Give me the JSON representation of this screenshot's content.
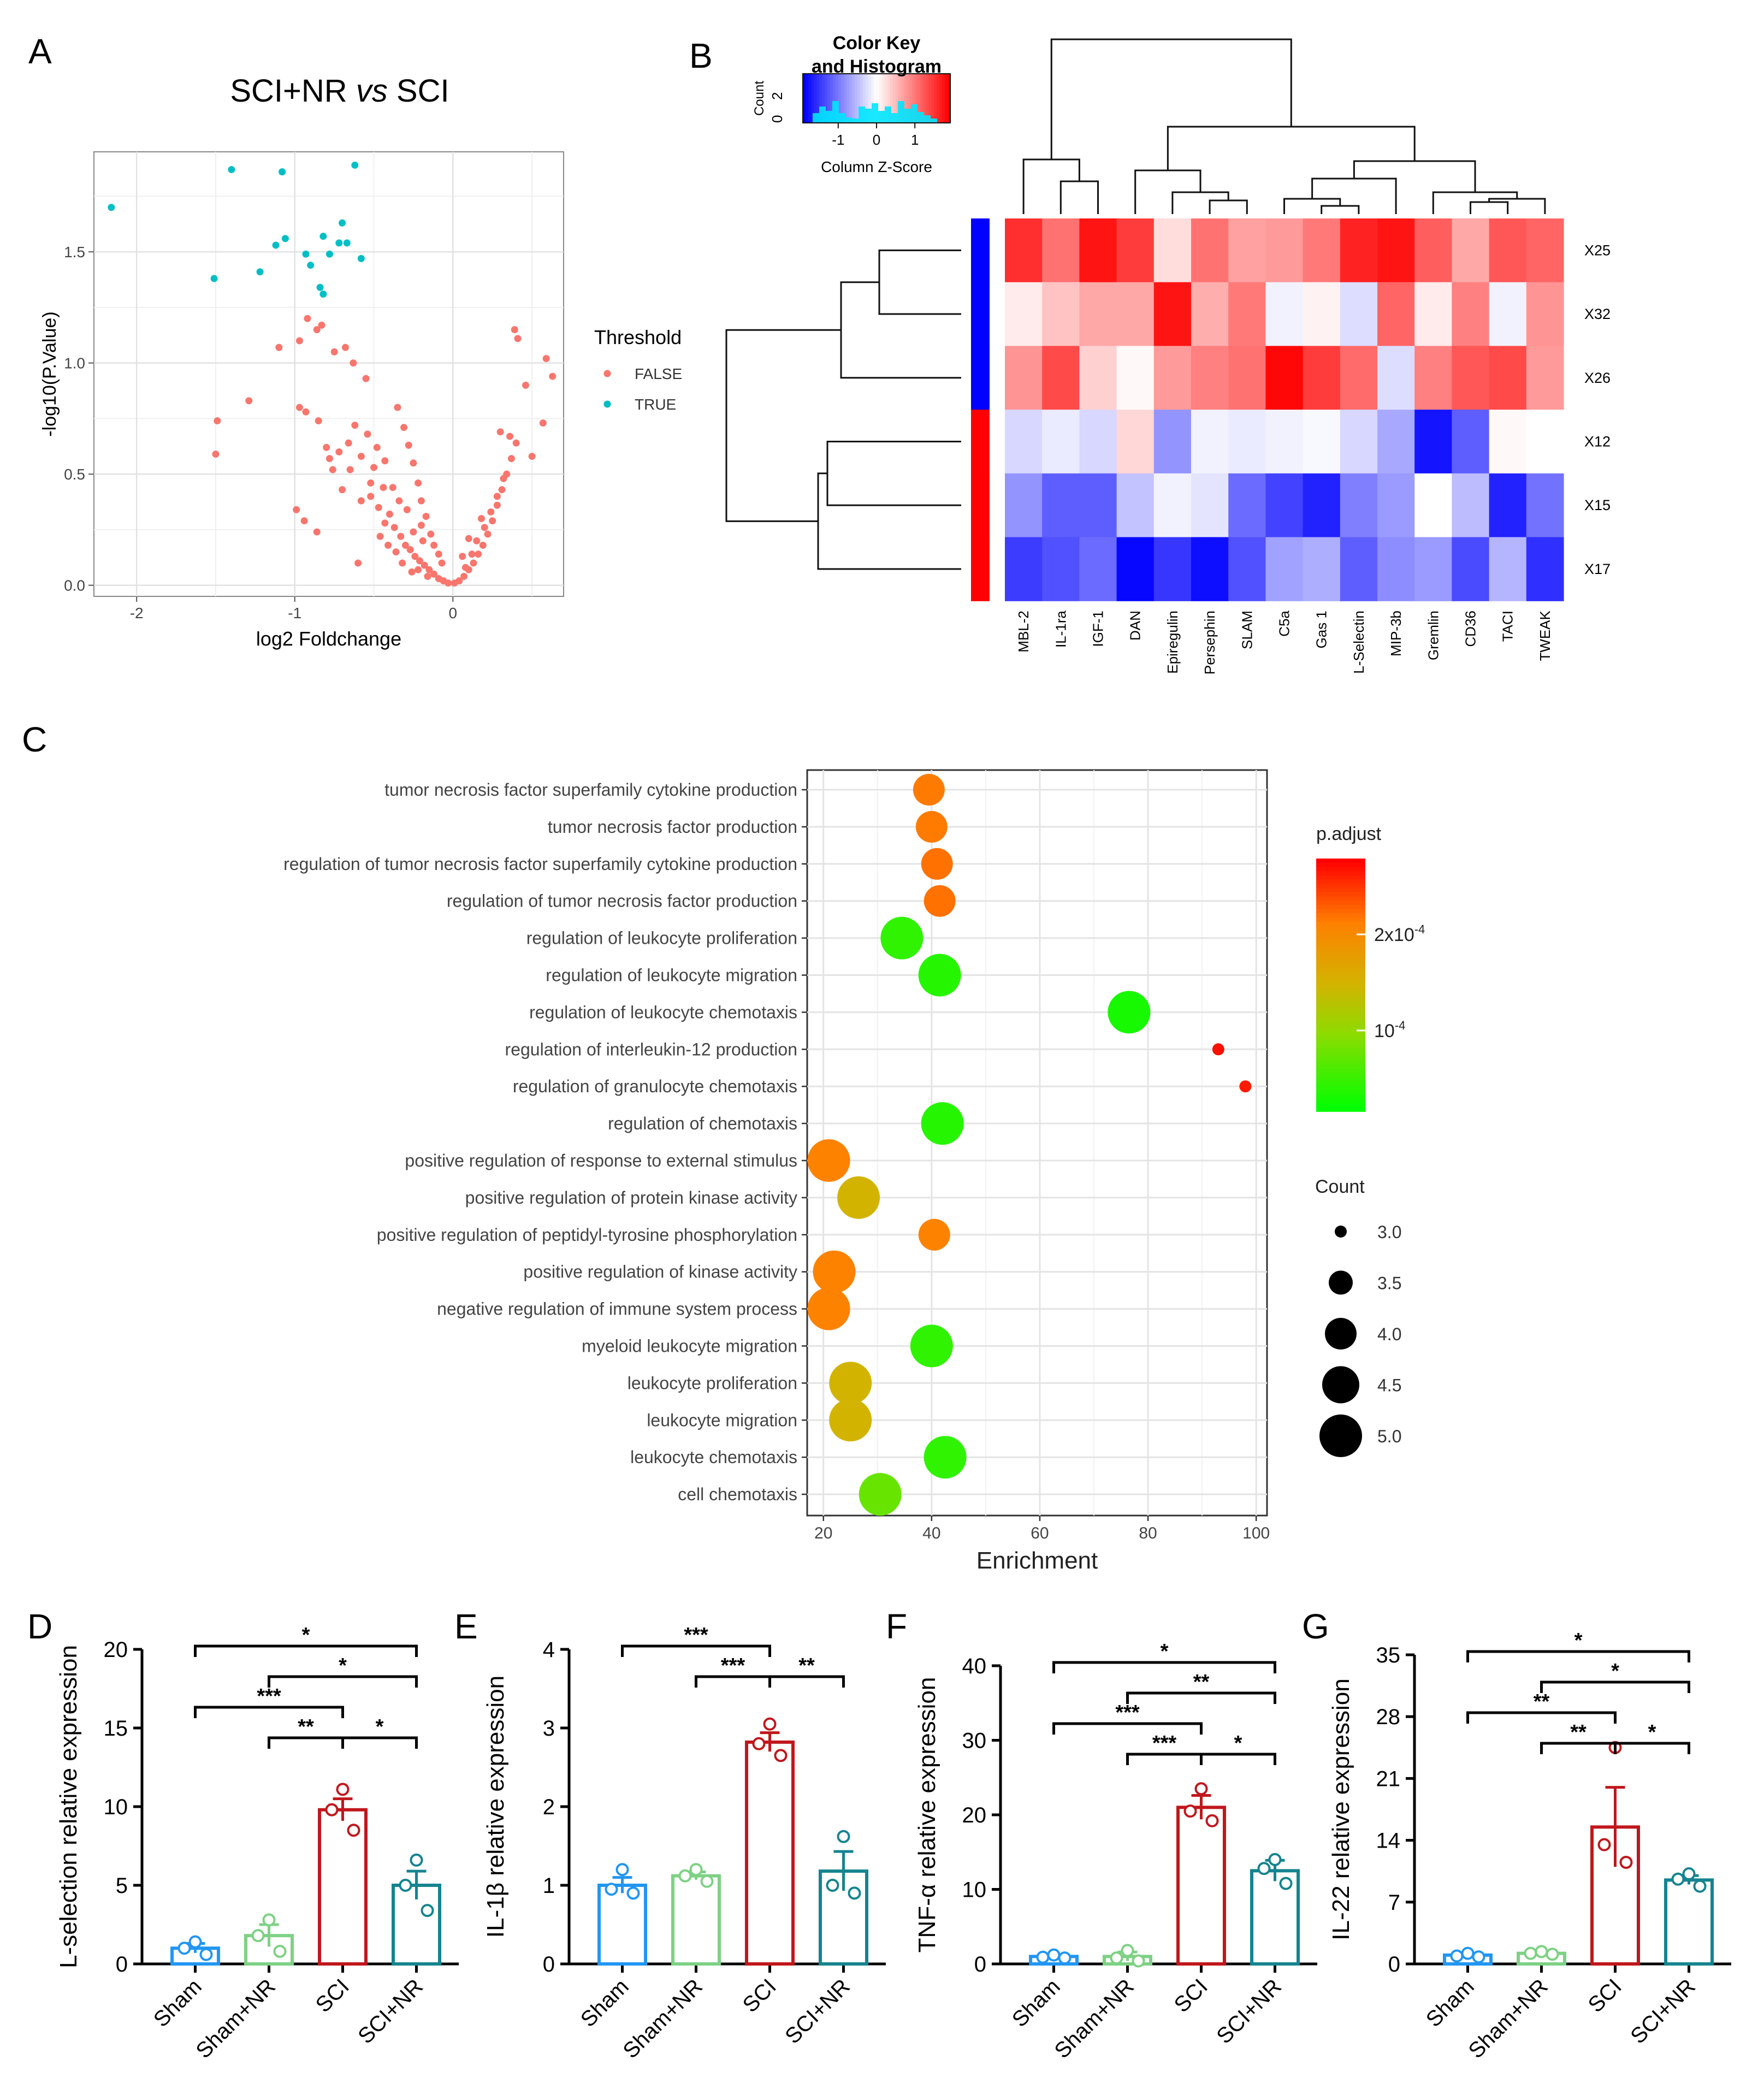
{
  "panel_labels": {
    "A": "A",
    "B": "B",
    "C": "C",
    "D": "D",
    "E": "E",
    "F": "F",
    "G": "G"
  },
  "colors": {
    "red": "#f8766d",
    "cyan": "#00bfc4",
    "sham": "#2196f3",
    "shamnr": "#7ed184",
    "sci": "#c0171c",
    "scinr": "#15848f"
  },
  "chart_data": [
    {
      "panel": "A",
      "type": "scatter",
      "title_a": "SCI+NR ",
      "title_b": "vs",
      "title_c": " SCI",
      "xlabel": "log2 Foldchange",
      "ylabel": "-log10(P.Value)",
      "xlim": [
        -2.27,
        0.7
      ],
      "ylim": [
        -0.05,
        1.95
      ],
      "xticks": [
        -2,
        -1,
        0
      ],
      "xtick_labels": [
        "-2",
        "-1",
        "0"
      ],
      "yticks": [
        0.0,
        0.5,
        1.0,
        1.5
      ],
      "ytick_labels": [
        "0.0",
        "0.5",
        "1.0",
        "1.5"
      ],
      "legend_title": "Threshold",
      "legend": [
        "FALSE",
        "TRUE"
      ],
      "true_points": [
        [
          -2.16,
          1.7
        ],
        [
          -1.4,
          1.87
        ],
        [
          -1.08,
          1.86
        ],
        [
          -0.62,
          1.89
        ],
        [
          -1.51,
          1.38
        ],
        [
          -1.22,
          1.41
        ],
        [
          -1.12,
          1.53
        ],
        [
          -1.06,
          1.56
        ],
        [
          -0.93,
          1.49
        ],
        [
          -0.9,
          1.44
        ],
        [
          -0.82,
          1.57
        ],
        [
          -0.78,
          1.49
        ],
        [
          -0.72,
          1.54
        ],
        [
          -0.7,
          1.63
        ],
        [
          -0.67,
          1.54
        ],
        [
          -0.58,
          1.47
        ],
        [
          -0.84,
          1.34
        ],
        [
          -0.82,
          1.31
        ]
      ],
      "false_points": [
        [
          -1.49,
          0.74
        ],
        [
          -1.5,
          0.59
        ],
        [
          -1.29,
          0.83
        ],
        [
          -1.1,
          1.07
        ],
        [
          -0.97,
          1.1
        ],
        [
          -0.92,
          1.2
        ],
        [
          -0.86,
          1.15
        ],
        [
          -0.83,
          1.17
        ],
        [
          -0.93,
          0.78
        ],
        [
          -0.97,
          0.8
        ],
        [
          -0.99,
          0.34
        ],
        [
          -0.94,
          0.29
        ],
        [
          -0.86,
          0.24
        ],
        [
          -0.75,
          1.05
        ],
        [
          -0.68,
          1.07
        ],
        [
          -0.63,
          1.0
        ],
        [
          -0.55,
          0.93
        ],
        [
          -0.62,
          0.72
        ],
        [
          -0.54,
          0.68
        ],
        [
          -0.48,
          0.62
        ],
        [
          -0.43,
          0.56
        ],
        [
          -0.85,
          0.74
        ],
        [
          -0.8,
          0.62
        ],
        [
          -0.76,
          0.52
        ],
        [
          -0.7,
          0.43
        ],
        [
          -0.65,
          0.52
        ],
        [
          -0.58,
          0.38
        ],
        [
          -0.52,
          0.46
        ],
        [
          -0.47,
          0.35
        ],
        [
          -0.43,
          0.28
        ],
        [
          -0.4,
          0.32
        ],
        [
          -0.37,
          0.26
        ],
        [
          -0.33,
          0.22
        ],
        [
          -0.3,
          0.18
        ],
        [
          -0.27,
          0.16
        ],
        [
          -0.24,
          0.13
        ],
        [
          -0.21,
          0.11
        ],
        [
          -0.18,
          0.09
        ],
        [
          -0.15,
          0.07
        ],
        [
          -0.12,
          0.05
        ],
        [
          -0.09,
          0.03
        ],
        [
          -0.06,
          0.02
        ],
        [
          -0.03,
          0.01
        ],
        [
          -0.35,
          0.8
        ],
        [
          -0.31,
          0.71
        ],
        [
          -0.28,
          0.63
        ],
        [
          -0.25,
          0.55
        ],
        [
          -0.22,
          0.46
        ],
        [
          -0.2,
          0.38
        ],
        [
          -0.17,
          0.31
        ],
        [
          -0.14,
          0.23
        ],
        [
          -0.12,
          0.18
        ],
        [
          -0.09,
          0.14
        ],
        [
          -0.07,
          0.1
        ],
        [
          -0.25,
          0.24
        ],
        [
          -0.2,
          0.27
        ],
        [
          -0.19,
          0.2
        ],
        [
          -0.38,
          0.44
        ],
        [
          -0.34,
          0.38
        ],
        [
          -0.29,
          0.34
        ],
        [
          -0.44,
          0.44
        ],
        [
          -0.5,
          0.53
        ],
        [
          -0.58,
          0.58
        ],
        [
          -0.66,
          0.64
        ],
        [
          -0.72,
          0.6
        ],
        [
          -0.78,
          0.57
        ],
        [
          -0.6,
          0.1
        ],
        [
          -0.52,
          0.4
        ],
        [
          -0.46,
          0.22
        ],
        [
          -0.41,
          0.18
        ],
        [
          -0.36,
          0.15
        ],
        [
          -0.32,
          0.1
        ],
        [
          -0.26,
          0.06
        ],
        [
          -0.22,
          0.07
        ],
        [
          -0.16,
          0.04
        ],
        [
          0.01,
          0.01
        ],
        [
          0.04,
          0.02
        ],
        [
          0.07,
          0.04
        ],
        [
          0.1,
          0.07
        ],
        [
          0.13,
          0.1
        ],
        [
          0.16,
          0.14
        ],
        [
          0.19,
          0.18
        ],
        [
          0.22,
          0.23
        ],
        [
          0.25,
          0.29
        ],
        [
          0.28,
          0.36
        ],
        [
          0.31,
          0.43
        ],
        [
          0.34,
          0.5
        ],
        [
          0.37,
          0.57
        ],
        [
          0.4,
          0.64
        ],
        [
          0.08,
          0.08
        ],
        [
          0.12,
          0.14
        ],
        [
          0.15,
          0.2
        ],
        [
          0.2,
          0.26
        ],
        [
          0.24,
          0.33
        ],
        [
          0.28,
          0.4
        ],
        [
          0.32,
          0.48
        ],
        [
          0.36,
          0.67
        ],
        [
          0.39,
          1.15
        ],
        [
          0.41,
          1.11
        ],
        [
          0.46,
          0.9
        ],
        [
          0.5,
          0.58
        ],
        [
          0.57,
          0.73
        ],
        [
          0.59,
          1.02
        ],
        [
          0.63,
          0.94
        ],
        [
          0.3,
          0.69
        ],
        [
          0.1,
          0.21
        ],
        [
          0.18,
          0.3
        ],
        [
          0.06,
          0.13
        ]
      ]
    },
    {
      "panel": "B",
      "type": "heatmap",
      "key_title_1": "Color Key",
      "key_title_2": "and Histogram",
      "key_ylabel": "Count",
      "key_xlabel": "Column Z-Score",
      "key_ticks": [
        "-1",
        "0",
        "1"
      ],
      "key_yticks": [
        "0",
        "2"
      ],
      "rows": [
        "X25",
        "X32",
        "X26",
        "X12",
        "X15",
        "X17"
      ],
      "columns": [
        "MBL-2",
        "IL-1ra",
        "IGF-1",
        "DAN",
        "Epiregulin",
        "Persephin",
        "SLAM",
        "C5a",
        "Gas 1",
        "L-Selectin",
        "MIP-3b",
        "Gremlin",
        "CD36",
        "TACI",
        "TWEAK"
      ],
      "values": [
        [
          1.55,
          1.05,
          1.75,
          1.45,
          0.25,
          1.05,
          0.7,
          0.75,
          1.0,
          1.65,
          1.75,
          1.2,
          0.65,
          1.25,
          1.15
        ],
        [
          0.15,
          0.45,
          0.65,
          0.65,
          1.75,
          0.6,
          1.0,
          -0.1,
          0.1,
          -0.25,
          1.15,
          0.15,
          0.95,
          -0.1,
          0.8
        ],
        [
          0.8,
          1.35,
          0.35,
          0.05,
          0.75,
          0.95,
          1.05,
          1.85,
          1.45,
          1.1,
          -0.25,
          0.95,
          1.25,
          1.35,
          0.75
        ],
        [
          -0.3,
          -0.15,
          -0.3,
          0.3,
          -0.8,
          -0.1,
          -0.15,
          -0.1,
          -0.05,
          -0.3,
          -0.65,
          -1.75,
          -1.2,
          0.05,
          0.0
        ],
        [
          -0.8,
          -1.2,
          -1.2,
          -0.45,
          -0.1,
          -0.2,
          -1.1,
          -1.4,
          -1.65,
          -0.95,
          -0.75,
          0.0,
          -0.5,
          -1.65,
          -1.05
        ],
        [
          -1.45,
          -1.3,
          -1.1,
          -1.85,
          -1.5,
          -1.8,
          -1.3,
          -0.7,
          -0.6,
          -1.2,
          -0.85,
          -0.75,
          -1.35,
          -0.55,
          -1.55
        ]
      ],
      "row_groups": [
        "blue",
        "blue",
        "blue",
        "red",
        "red",
        "red"
      ]
    },
    {
      "panel": "C",
      "type": "scatter",
      "terms": [
        "tumor necrosis factor superfamily cytokine production",
        "tumor necrosis factor production",
        "regulation of tumor necrosis factor superfamily cytokine production",
        "regulation of tumor necrosis factor production",
        "regulation of leukocyte proliferation",
        "regulation of leukocyte migration",
        "regulation of leukocyte chemotaxis",
        "regulation of interleukin-12 production",
        "regulation of granulocyte chemotaxis",
        "regulation of chemotaxis",
        "positive regulation of response to external stimulus",
        "positive regulation of protein kinase activity",
        "positive regulation of peptidyl-tyrosine phosphorylation",
        "positive regulation of kinase activity",
        "negative regulation of immune system process",
        "myeloid leukocyte migration",
        "leukocyte proliferation",
        "leukocyte migration",
        "leukocyte chemotaxis",
        "cell chemotaxis"
      ],
      "enrichment": [
        39.5,
        40.0,
        41.0,
        41.5,
        34.5,
        41.5,
        76.5,
        93.0,
        98.0,
        42.0,
        21.0,
        26.5,
        40.5,
        22.0,
        21.0,
        40.0,
        25.0,
        25.0,
        42.5,
        30.5
      ],
      "count": [
        4,
        4,
        4,
        4,
        5,
        5,
        5,
        3,
        3,
        5,
        5,
        5,
        4,
        5,
        5,
        5,
        5,
        5,
        5,
        5
      ],
      "p_adjust_level": [
        0.76,
        0.76,
        0.78,
        0.78,
        0.1,
        0.08,
        0.05,
        0.97,
        0.95,
        0.08,
        0.74,
        0.5,
        0.74,
        0.74,
        0.74,
        0.1,
        0.5,
        0.5,
        0.1,
        0.22
      ],
      "xlabel": "Enrichment",
      "xlim": [
        17,
        102
      ],
      "xticks": [
        20,
        40,
        60,
        80,
        100
      ],
      "xtick_labels": [
        "20",
        "40",
        "60",
        "80",
        "100"
      ],
      "colorbar_title": "p.adjust",
      "colorbar_ticks": [
        {
          "label": "2x10",
          "sup": "-4",
          "level": 0.7
        },
        {
          "label": "10",
          "sup": "-4",
          "level": 0.32
        }
      ],
      "size_title": "Count",
      "size_legend": [
        "3.0",
        "3.5",
        "4.0",
        "4.5",
        "5.0"
      ]
    },
    {
      "panel": "D",
      "type": "bar",
      "ylabel": "L-selection relative expression",
      "categories": [
        "Sham",
        "Sham+NR",
        "SCI",
        "SCI+NR"
      ],
      "values": [
        1.0,
        1.8,
        9.8,
        5.0
      ],
      "sem": [
        0.3,
        0.7,
        0.7,
        0.9
      ],
      "points": [
        [
          1.4,
          1.0,
          0.6
        ],
        [
          2.8,
          1.8,
          0.8
        ],
        [
          11.1,
          9.8,
          8.5
        ],
        [
          6.6,
          5.0,
          3.4
        ]
      ],
      "ylim": [
        0,
        20
      ],
      "yticks": [
        0,
        5,
        10,
        15,
        20
      ],
      "ytick_labels": [
        "0",
        "5",
        "10",
        "15",
        "20"
      ],
      "sig": [
        {
          "a": 0,
          "b": 3,
          "label": "*",
          "level": 0
        },
        {
          "a": 1,
          "b": 3,
          "label": "*",
          "level": 1
        },
        {
          "a": 0,
          "b": 2,
          "label": "***",
          "level": 2
        },
        {
          "a": 1,
          "b": 2,
          "label": "**",
          "level": 3
        },
        {
          "a": 2,
          "b": 3,
          "label": "*",
          "level": 3
        }
      ]
    },
    {
      "panel": "E",
      "type": "bar",
      "ylabel": "IL-1β relative expression",
      "categories": [
        "Sham",
        "Sham+NR",
        "SCI",
        "SCI+NR"
      ],
      "values": [
        1.0,
        1.12,
        2.82,
        1.18
      ],
      "sem": [
        0.1,
        0.05,
        0.12,
        0.25
      ],
      "points": [
        [
          1.2,
          0.95,
          0.9
        ],
        [
          1.2,
          1.12,
          1.05
        ],
        [
          3.05,
          2.8,
          2.65
        ],
        [
          1.62,
          1.0,
          0.9
        ]
      ],
      "ylim": [
        0,
        4
      ],
      "yticks": [
        0,
        1,
        2,
        3,
        4
      ],
      "ytick_labels": [
        "0",
        "1",
        "2",
        "3",
        "4"
      ],
      "sig": [
        {
          "a": 0,
          "b": 2,
          "label": "***",
          "level": 0
        },
        {
          "a": 1,
          "b": 2,
          "label": "***",
          "level": 1
        },
        {
          "a": 2,
          "b": 3,
          "label": "**",
          "level": 1
        }
      ]
    },
    {
      "panel": "F",
      "type": "bar",
      "ylabel": "TNF-α relative expression",
      "categories": [
        "Sham",
        "Sham+NR",
        "SCI",
        "SCI+NR"
      ],
      "values": [
        1.0,
        1.0,
        21.0,
        12.5
      ],
      "sem": [
        0.1,
        0.6,
        1.6,
        1.4
      ],
      "points": [
        [
          1.2,
          0.9,
          0.8
        ],
        [
          1.8,
          0.8,
          0.4
        ],
        [
          23.5,
          20.5,
          19.2
        ],
        [
          14.0,
          12.8,
          10.8
        ]
      ],
      "ylim": [
        0,
        40
      ],
      "yticks": [
        0,
        10,
        20,
        30,
        40
      ],
      "ytick_labels": [
        "0",
        "10",
        "20",
        "30",
        "40"
      ],
      "sig": [
        {
          "a": 0,
          "b": 3,
          "label": "*",
          "level": 0
        },
        {
          "a": 1,
          "b": 3,
          "label": "**",
          "level": 1
        },
        {
          "a": 0,
          "b": 2,
          "label": "***",
          "level": 2
        },
        {
          "a": 1,
          "b": 2,
          "label": "***",
          "level": 3
        },
        {
          "a": 2,
          "b": 3,
          "label": "*",
          "level": 3
        }
      ]
    },
    {
      "panel": "G",
      "type": "bar",
      "ylabel": "IL-22 relative expression",
      "categories": [
        "Sham",
        "Sham+NR",
        "SCI",
        "SCI+NR"
      ],
      "values": [
        1.0,
        1.2,
        15.5,
        9.5
      ],
      "sem": [
        0.2,
        0.1,
        4.5,
        0.5
      ],
      "points": [
        [
          1.2,
          0.9,
          0.8
        ],
        [
          1.4,
          1.2,
          1.1
        ],
        [
          24.5,
          13.5,
          11.5
        ],
        [
          10.2,
          9.6,
          8.8
        ]
      ],
      "ylim": [
        0,
        35
      ],
      "yticks": [
        0,
        7,
        14,
        21,
        28,
        35
      ],
      "ytick_labels": [
        "0",
        "7",
        "14",
        "21",
        "28",
        "35"
      ],
      "sig": [
        {
          "a": 0,
          "b": 3,
          "label": "*",
          "level": 0
        },
        {
          "a": 1,
          "b": 3,
          "label": "*",
          "level": 1
        },
        {
          "a": 0,
          "b": 2,
          "label": "**",
          "level": 2
        },
        {
          "a": 1,
          "b": 2,
          "label": "**",
          "level": 3
        },
        {
          "a": 2,
          "b": 3,
          "label": "*",
          "level": 3
        }
      ]
    }
  ]
}
